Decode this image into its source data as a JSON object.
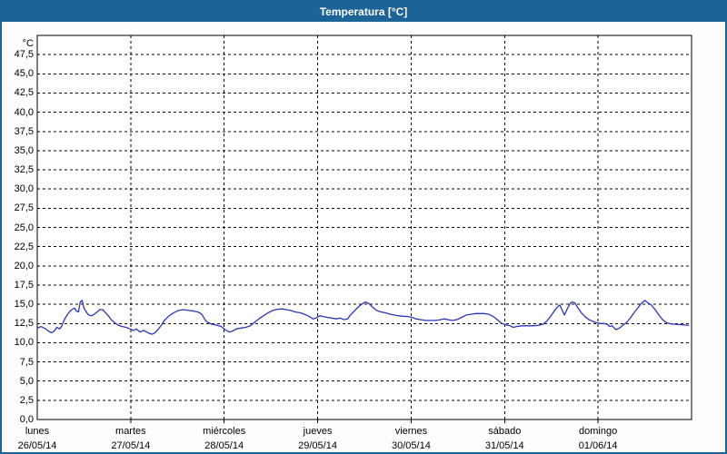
{
  "window": {
    "title": "Temperatura [°C]"
  },
  "colors": {
    "frame_blue": "#1c6398",
    "title_text": "#ffffff",
    "plot_bg": "#ffffff",
    "grid": "#000000",
    "line_blue": "#2a35b8",
    "label_text": "#000000"
  },
  "chart_data": {
    "type": "line",
    "title": "Temperatura [°C]",
    "y_unit": "°C",
    "ylim": [
      0,
      50
    ],
    "ytick_step": 2.5,
    "ytick_labels": [
      "0,0",
      "2,5",
      "5,0",
      "7,5",
      "10,0",
      "12,5",
      "15,0",
      "17,5",
      "20,0",
      "22,5",
      "25,0",
      "27,5",
      "30,0",
      "32,5",
      "35,0",
      "37,5",
      "40,0",
      "42,5",
      "45,0",
      "47,5"
    ],
    "xlim_days": [
      0,
      7
    ],
    "grid_style": "dashed",
    "x_days": [
      {
        "name": "lunes",
        "date": "26/05/14"
      },
      {
        "name": "martes",
        "date": "27/05/14"
      },
      {
        "name": "miércoles",
        "date": "28/05/14"
      },
      {
        "name": "jueves",
        "date": "29/05/14"
      },
      {
        "name": "viernes",
        "date": "30/05/14"
      },
      {
        "name": "sábado",
        "date": "31/05/14"
      },
      {
        "name": "domingo",
        "date": "01/06/14"
      }
    ],
    "series": [
      {
        "name": "Temperatura",
        "color": "#2a35b8",
        "points": [
          [
            0.0,
            11.9
          ],
          [
            0.04,
            12.1
          ],
          [
            0.09,
            11.8
          ],
          [
            0.12,
            11.5
          ],
          [
            0.15,
            11.3
          ],
          [
            0.18,
            11.5
          ],
          [
            0.21,
            12.0
          ],
          [
            0.24,
            11.8
          ],
          [
            0.26,
            12.1
          ],
          [
            0.29,
            13.0
          ],
          [
            0.32,
            13.6
          ],
          [
            0.35,
            14.1
          ],
          [
            0.38,
            14.4
          ],
          [
            0.4,
            14.5
          ],
          [
            0.42,
            14.1
          ],
          [
            0.44,
            14.0
          ],
          [
            0.46,
            15.3
          ],
          [
            0.48,
            15.5
          ],
          [
            0.5,
            14.5
          ],
          [
            0.53,
            13.9
          ],
          [
            0.55,
            13.6
          ],
          [
            0.58,
            13.5
          ],
          [
            0.61,
            13.7
          ],
          [
            0.64,
            14.0
          ],
          [
            0.67,
            14.3
          ],
          [
            0.7,
            14.3
          ],
          [
            0.73,
            13.9
          ],
          [
            0.76,
            13.5
          ],
          [
            0.79,
            13.0
          ],
          [
            0.82,
            12.7
          ],
          [
            0.85,
            12.4
          ],
          [
            0.88,
            12.2
          ],
          [
            0.91,
            12.1
          ],
          [
            0.95,
            12.0
          ],
          [
            0.99,
            11.8
          ],
          [
            1.03,
            11.6
          ],
          [
            1.06,
            11.8
          ],
          [
            1.1,
            11.4
          ],
          [
            1.14,
            11.6
          ],
          [
            1.17,
            11.4
          ],
          [
            1.2,
            11.2
          ],
          [
            1.23,
            11.1
          ],
          [
            1.26,
            11.3
          ],
          [
            1.29,
            11.7
          ],
          [
            1.33,
            12.3
          ],
          [
            1.36,
            12.9
          ],
          [
            1.41,
            13.5
          ],
          [
            1.46,
            13.9
          ],
          [
            1.51,
            14.2
          ],
          [
            1.56,
            14.3
          ],
          [
            1.62,
            14.2
          ],
          [
            1.68,
            14.1
          ],
          [
            1.72,
            14.0
          ],
          [
            1.76,
            13.7
          ],
          [
            1.8,
            12.9
          ],
          [
            1.83,
            12.6
          ],
          [
            1.87,
            12.4
          ],
          [
            1.91,
            12.3
          ],
          [
            1.94,
            12.2
          ],
          [
            1.97,
            12.1
          ],
          [
            2.01,
            11.7
          ],
          [
            2.05,
            11.4
          ],
          [
            2.09,
            11.5
          ],
          [
            2.13,
            11.8
          ],
          [
            2.18,
            11.9
          ],
          [
            2.23,
            12.0
          ],
          [
            2.28,
            12.2
          ],
          [
            2.32,
            12.6
          ],
          [
            2.37,
            13.1
          ],
          [
            2.42,
            13.5
          ],
          [
            2.47,
            13.9
          ],
          [
            2.52,
            14.2
          ],
          [
            2.57,
            14.35
          ],
          [
            2.62,
            14.4
          ],
          [
            2.66,
            14.3
          ],
          [
            2.71,
            14.2
          ],
          [
            2.76,
            14.0
          ],
          [
            2.81,
            13.9
          ],
          [
            2.86,
            13.7
          ],
          [
            2.91,
            13.4
          ],
          [
            2.95,
            13.1
          ],
          [
            2.98,
            13.2
          ],
          [
            3.02,
            13.5
          ],
          [
            3.06,
            13.4
          ],
          [
            3.1,
            13.3
          ],
          [
            3.15,
            13.2
          ],
          [
            3.2,
            13.1
          ],
          [
            3.24,
            13.2
          ],
          [
            3.28,
            13.0
          ],
          [
            3.32,
            13.1
          ],
          [
            3.35,
            13.6
          ],
          [
            3.39,
            14.1
          ],
          [
            3.43,
            14.6
          ],
          [
            3.47,
            15.0
          ],
          [
            3.51,
            15.3
          ],
          [
            3.55,
            15.1
          ],
          [
            3.59,
            14.6
          ],
          [
            3.63,
            14.2
          ],
          [
            3.68,
            14.0
          ],
          [
            3.72,
            13.9
          ],
          [
            3.78,
            13.7
          ],
          [
            3.84,
            13.55
          ],
          [
            3.9,
            13.45
          ],
          [
            3.96,
            13.4
          ],
          [
            4.01,
            13.3
          ],
          [
            4.05,
            13.1
          ],
          [
            4.1,
            13.0
          ],
          [
            4.15,
            12.9
          ],
          [
            4.2,
            12.9
          ],
          [
            4.25,
            12.9
          ],
          [
            4.3,
            12.95
          ],
          [
            4.35,
            13.1
          ],
          [
            4.39,
            13.0
          ],
          [
            4.44,
            12.9
          ],
          [
            4.49,
            13.0
          ],
          [
            4.54,
            13.3
          ],
          [
            4.59,
            13.6
          ],
          [
            4.64,
            13.7
          ],
          [
            4.69,
            13.8
          ],
          [
            4.73,
            13.8
          ],
          [
            4.78,
            13.8
          ],
          [
            4.83,
            13.7
          ],
          [
            4.88,
            13.4
          ],
          [
            4.93,
            12.9
          ],
          [
            4.97,
            12.5
          ],
          [
            5.02,
            12.3
          ],
          [
            5.06,
            12.2
          ],
          [
            5.09,
            12.0
          ],
          [
            5.13,
            12.1
          ],
          [
            5.18,
            12.2
          ],
          [
            5.24,
            12.2
          ],
          [
            5.3,
            12.2
          ],
          [
            5.36,
            12.25
          ],
          [
            5.41,
            12.4
          ],
          [
            5.45,
            12.8
          ],
          [
            5.49,
            13.4
          ],
          [
            5.53,
            14.1
          ],
          [
            5.56,
            14.6
          ],
          [
            5.59,
            14.9
          ],
          [
            5.62,
            14.1
          ],
          [
            5.64,
            13.6
          ],
          [
            5.67,
            14.4
          ],
          [
            5.7,
            15.1
          ],
          [
            5.72,
            15.3
          ],
          [
            5.75,
            15.2
          ],
          [
            5.78,
            14.6
          ],
          [
            5.82,
            13.9
          ],
          [
            5.86,
            13.4
          ],
          [
            5.9,
            13.0
          ],
          [
            5.94,
            12.8
          ],
          [
            5.98,
            12.6
          ],
          [
            6.02,
            12.5
          ],
          [
            6.06,
            12.5
          ],
          [
            6.1,
            12.4
          ],
          [
            6.12,
            12.1
          ],
          [
            6.15,
            12.2
          ],
          [
            6.19,
            11.7
          ],
          [
            6.23,
            11.9
          ],
          [
            6.27,
            12.3
          ],
          [
            6.31,
            12.7
          ],
          [
            6.35,
            13.3
          ],
          [
            6.39,
            14.0
          ],
          [
            6.43,
            14.6
          ],
          [
            6.46,
            15.1
          ],
          [
            6.5,
            15.5
          ],
          [
            6.53,
            15.2
          ],
          [
            6.57,
            14.9
          ],
          [
            6.61,
            14.3
          ],
          [
            6.65,
            13.6
          ],
          [
            6.69,
            13.0
          ],
          [
            6.73,
            12.6
          ],
          [
            6.78,
            12.45
          ],
          [
            6.82,
            12.4
          ],
          [
            6.87,
            12.35
          ],
          [
            6.92,
            12.3
          ],
          [
            6.97,
            12.25
          ]
        ]
      }
    ]
  }
}
